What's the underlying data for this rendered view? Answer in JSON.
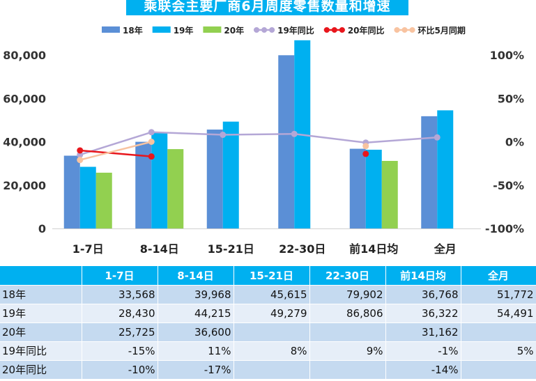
{
  "chart_data": {
    "type": "bar",
    "title": "乘联会主要厂商6月周度零售数量和增速",
    "categories": [
      "1-7日",
      "8-14日",
      "15-21日",
      "22-30日",
      "前14日均",
      "全月"
    ],
    "series": [
      {
        "name": "18年",
        "kind": "bar",
        "axis": "left",
        "color": "#5b8fd6",
        "values": [
          33568,
          39968,
          45615,
          79902,
          36768,
          51772
        ]
      },
      {
        "name": "19年",
        "kind": "bar",
        "axis": "left",
        "color": "#00b0f0",
        "values": [
          28430,
          44215,
          49279,
          86806,
          36322,
          54491
        ]
      },
      {
        "name": "20年",
        "kind": "bar",
        "axis": "left",
        "color": "#92d050",
        "values": [
          25725,
          36600,
          null,
          null,
          31162,
          null
        ]
      },
      {
        "name": "19年同比",
        "kind": "line",
        "axis": "right",
        "color": "#b4a7d6",
        "values": [
          -15,
          11,
          8,
          9,
          -1,
          5
        ]
      },
      {
        "name": "20年同比",
        "kind": "line",
        "axis": "right",
        "color": "#e8161c",
        "values": [
          -10,
          -17,
          null,
          null,
          -14,
          null
        ]
      },
      {
        "name": "环比5月同期",
        "kind": "line",
        "axis": "right",
        "color": "#f8c3a0",
        "values": [
          -21,
          0,
          null,
          null,
          -5,
          null
        ]
      }
    ],
    "ylim": [
      0,
      80000
    ],
    "y2lim": [
      -100,
      100
    ],
    "yticks": [
      "0",
      "20,000",
      "40,000",
      "60,000",
      "80,000"
    ],
    "y2ticks": [
      "-100%",
      "-50%",
      "0%",
      "50%",
      "100%"
    ],
    "legend_position": "top-right",
    "grid": false
  },
  "table": {
    "headers": [
      "",
      "1-7日",
      "8-14日",
      "15-21日",
      "22-30日",
      "前14日均",
      "全月"
    ],
    "rows": [
      {
        "label": "18年",
        "cells": [
          "33,568",
          "39,968",
          "45,615",
          "79,902",
          "36,768",
          "51,772"
        ]
      },
      {
        "label": "19年",
        "cells": [
          "28,430",
          "44,215",
          "49,279",
          "86,806",
          "36,322",
          "54,491"
        ]
      },
      {
        "label": "20年",
        "cells": [
          "25,725",
          "36,600",
          "",
          "",
          "31,162",
          ""
        ]
      },
      {
        "label": "19年同比",
        "cells": [
          "-15%",
          "11%",
          "8%",
          "9%",
          "-1%",
          "5%"
        ]
      },
      {
        "label": "20年同比",
        "cells": [
          "-10%",
          "-17%",
          "",
          "",
          "-14%",
          ""
        ]
      }
    ]
  }
}
